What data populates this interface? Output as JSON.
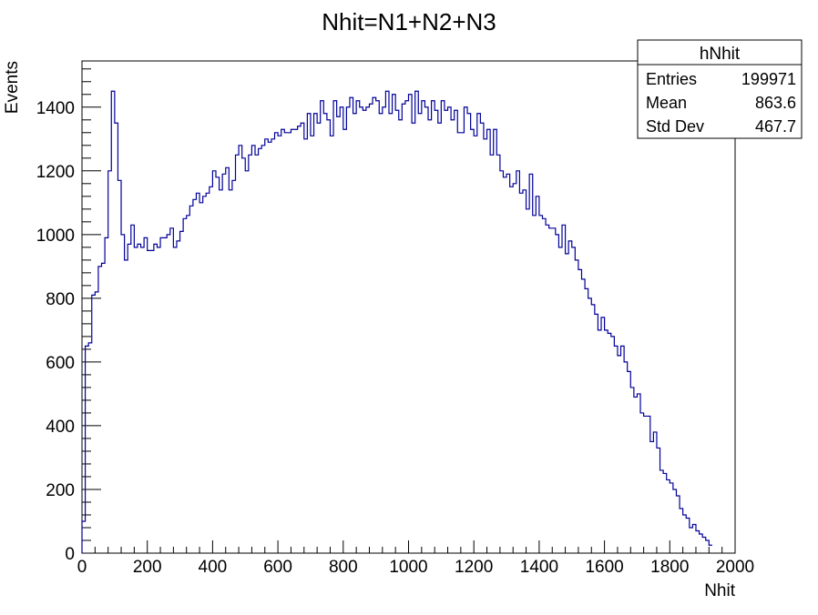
{
  "chart_data": {
    "type": "histogram",
    "title": "Nhit=N1+N2+N3",
    "xlabel": "Nhit",
    "ylabel": "Events",
    "xlim": [
      0,
      2000
    ],
    "ylim": [
      0,
      1545
    ],
    "bin_width": 10,
    "x_ticks": [
      0,
      200,
      400,
      600,
      800,
      1000,
      1200,
      1400,
      1600,
      1800,
      2000
    ],
    "y_ticks": [
      0,
      200,
      400,
      600,
      800,
      1000,
      1200,
      1400
    ],
    "line_color": "#000099",
    "series": [
      {
        "values": [
          100,
          650,
          660,
          810,
          820,
          900,
          910,
          990,
          1200,
          1450,
          1350,
          1170,
          1000,
          920,
          970,
          1030,
          960,
          970,
          960,
          990,
          950,
          950,
          970,
          960,
          990,
          990,
          1000,
          1020,
          960,
          980,
          1010,
          1050,
          1060,
          1090,
          1110,
          1130,
          1100,
          1120,
          1130,
          1150,
          1200,
          1180,
          1140,
          1190,
          1210,
          1140,
          1170,
          1250,
          1280,
          1240,
          1200,
          1250,
          1280,
          1250,
          1270,
          1280,
          1300,
          1290,
          1300,
          1320,
          1310,
          1330,
          1320,
          1320,
          1330,
          1330,
          1340,
          1350,
          1300,
          1380,
          1310,
          1380,
          1350,
          1420,
          1380,
          1360,
          1310,
          1420,
          1370,
          1400,
          1330,
          1400,
          1430,
          1380,
          1420,
          1400,
          1390,
          1400,
          1410,
          1430,
          1420,
          1380,
          1400,
          1450,
          1380,
          1440,
          1390,
          1360,
          1410,
          1420,
          1440,
          1350,
          1450,
          1380,
          1420,
          1400,
          1360,
          1420,
          1390,
          1350,
          1420,
          1390,
          1400,
          1360,
          1390,
          1320,
          1320,
          1400,
          1380,
          1330,
          1310,
          1380,
          1350,
          1300,
          1330,
          1250,
          1330,
          1250,
          1200,
          1180,
          1190,
          1150,
          1160,
          1200,
          1130,
          1140,
          1080,
          1190,
          1060,
          1120,
          1060,
          1050,
          1030,
          1020,
          1020,
          1000,
          960,
          1030,
          940,
          980,
          960,
          920,
          890,
          860,
          830,
          800,
          780,
          750,
          700,
          740,
          700,
          690,
          680,
          650,
          620,
          650,
          600,
          570,
          520,
          490,
          500,
          440,
          430,
          430,
          350,
          380,
          330,
          260,
          250,
          230,
          220,
          200,
          180,
          140,
          120,
          110,
          80,
          90,
          70,
          60,
          50,
          40,
          25
        ]
      }
    ],
    "stats_box": {
      "title": "hNhit",
      "rows": [
        {
          "label": "Entries",
          "value": "199971"
        },
        {
          "label": "Mean",
          "value": "863.6"
        },
        {
          "label": "Std Dev",
          "value": "467.7"
        }
      ]
    }
  }
}
